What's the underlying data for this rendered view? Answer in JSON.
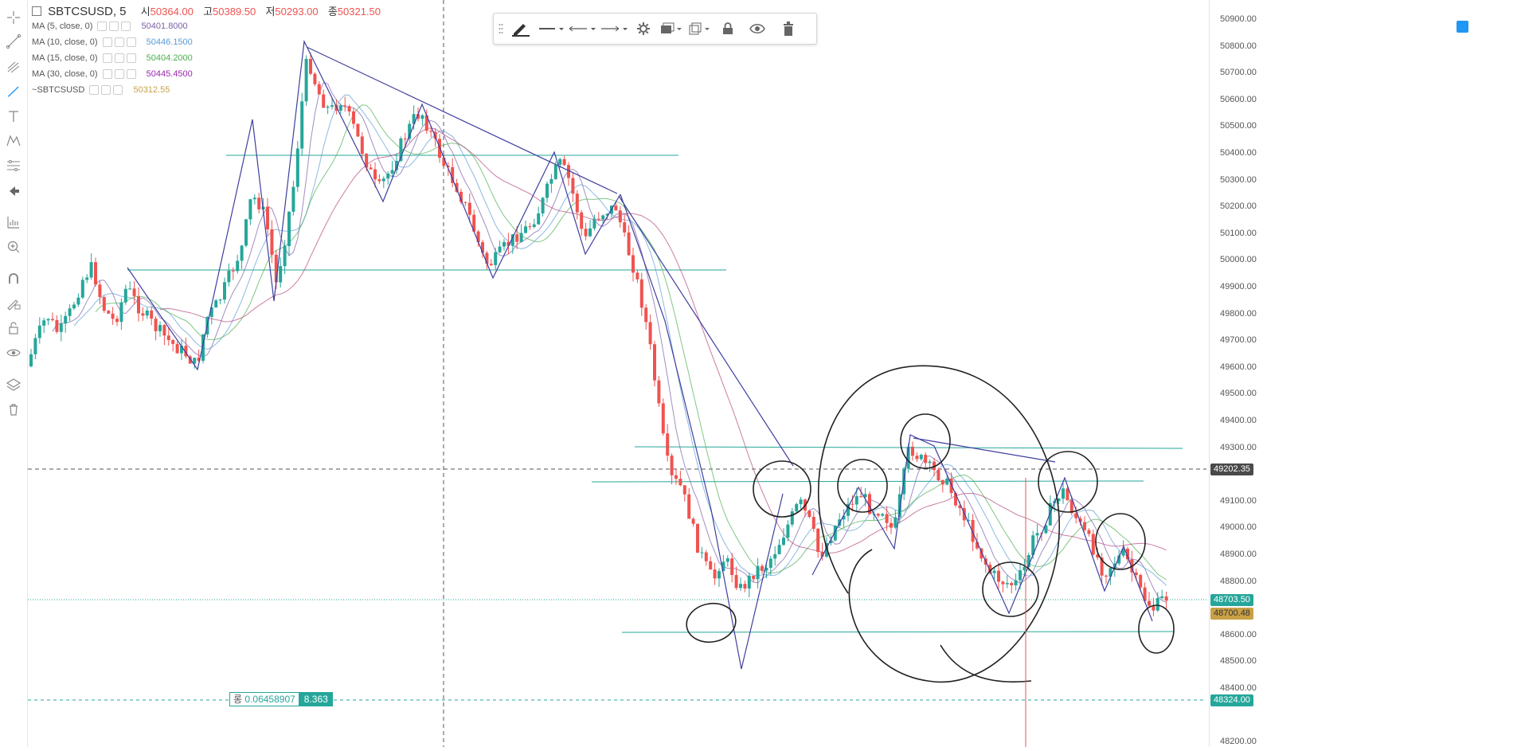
{
  "symbol": {
    "name": "SBTCSUSD, 5",
    "open_label": "시",
    "open": "50364.00",
    "high_label": "고",
    "high": "50389.50",
    "low_label": "저",
    "low": "50293.00",
    "close_label": "종",
    "close": "50321.50"
  },
  "indicators": [
    {
      "label": "MA (5, close, 0)",
      "value": "50401.8000",
      "color": "#7b5ea7"
    },
    {
      "label": "MA (10, close, 0)",
      "value": "50446.1500",
      "color": "#5b9bd5"
    },
    {
      "label": "MA (15, close, 0)",
      "value": "50404.2000",
      "color": "#4caf50"
    },
    {
      "label": "MA (30, close, 0)",
      "value": "50445.4500",
      "color": "#9c27b0"
    },
    {
      "label": "~SBTCSUSD",
      "value": "50312.55",
      "color": "#c8a046"
    }
  ],
  "price_axis": {
    "ticks": [
      "50900.00",
      "50800.00",
      "50700.00",
      "50600.00",
      "50500.00",
      "50400.00",
      "50300.00",
      "50200.00",
      "50100.00",
      "50000.00",
      "49900.00",
      "49800.00",
      "49700.00",
      "49600.00",
      "49500.00",
      "49400.00",
      "49300.00",
      "49100.00",
      "49000.00",
      "48900.00",
      "48800.00",
      "48600.00",
      "48500.00",
      "48400.00",
      "48200.00"
    ],
    "tags": [
      {
        "text": "49202.35",
        "bg": "#4a4a4a"
      },
      {
        "text": "48703.50",
        "bg": "#26a69a"
      },
      {
        "text": "48700.48",
        "bg": "#c8a046"
      },
      {
        "text": "48324.00",
        "bg": "#26a69a"
      }
    ]
  },
  "measure": {
    "value": "0.06458907",
    "prefix": "롱",
    "ratio": "8.363"
  },
  "colors": {
    "up": "#26a69a",
    "down": "#ef5350",
    "trend": "#3f3f9f",
    "hline": "#26a69a",
    "hand": "#222222"
  },
  "icons": {
    "left_toolbar": [
      "crosshair-icon",
      "trendline-icon",
      "pitchfork-icon",
      "brush-icon",
      "text-icon",
      "pattern-icon",
      "prediction-icon",
      "back-arrow-icon",
      "ruler-icon",
      "zoom-in-icon",
      "magnet-icon",
      "lock-draw-icon",
      "lock-icon",
      "eye-icon",
      "layers-icon",
      "trash-icon"
    ],
    "drawing_toolbar": [
      "pencil-icon",
      "line-style-icon",
      "line-start-icon",
      "line-end-icon",
      "settings-icon",
      "template-icon",
      "clone-icon",
      "lock-icon",
      "eye-icon",
      "trash-icon"
    ]
  }
}
